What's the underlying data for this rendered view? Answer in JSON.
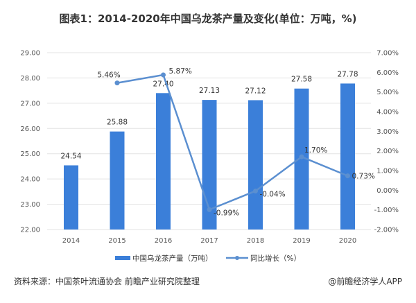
{
  "title": "图表1：2014-2020年中国乌龙茶产量及变化(单位：万吨，%)",
  "chart_data": {
    "type": "bar+line",
    "title": "图表1：2014-2020年中国乌龙茶产量及变化(单位：万吨，%)",
    "categories": [
      "2014",
      "2015",
      "2016",
      "2017",
      "2018",
      "2019",
      "2020"
    ],
    "series": [
      {
        "name": "中国乌龙茶产量（万吨）",
        "type": "bar",
        "axis": "left",
        "values": [
          24.54,
          25.88,
          27.4,
          27.13,
          27.12,
          27.58,
          27.78
        ],
        "labels": [
          "24.54",
          "25.88",
          "27.40",
          "27.13",
          "27.12",
          "27.58",
          "27.78"
        ],
        "color": "#3b7fd9"
      },
      {
        "name": "同比增长（%）",
        "type": "line",
        "axis": "right",
        "values": [
          null,
          5.46,
          5.87,
          -0.99,
          -0.04,
          1.7,
          0.73
        ],
        "labels": [
          "",
          "5.46%",
          "5.87%",
          "-0.99%",
          "-0.04%",
          "1.70%",
          "0.73%"
        ],
        "color": "#5b8fd0"
      }
    ],
    "ylim_left": [
      22,
      29
    ],
    "yticks_left": [
      "22.00",
      "23.00",
      "24.00",
      "25.00",
      "26.00",
      "27.00",
      "28.00",
      "29.00"
    ],
    "ylim_right": [
      -2,
      7
    ],
    "yticks_right": [
      "-2.00%",
      "-1.00%",
      "0.00%",
      "1.00%",
      "2.00%",
      "3.00%",
      "4.00%",
      "5.00%",
      "6.00%",
      "7.00%"
    ],
    "grid": true,
    "legend": "bottom"
  },
  "footer": {
    "source": "资料来源：中国茶叶流通协会 前瞻产业研究院整理",
    "credit": "@前瞻经济学人APP"
  }
}
